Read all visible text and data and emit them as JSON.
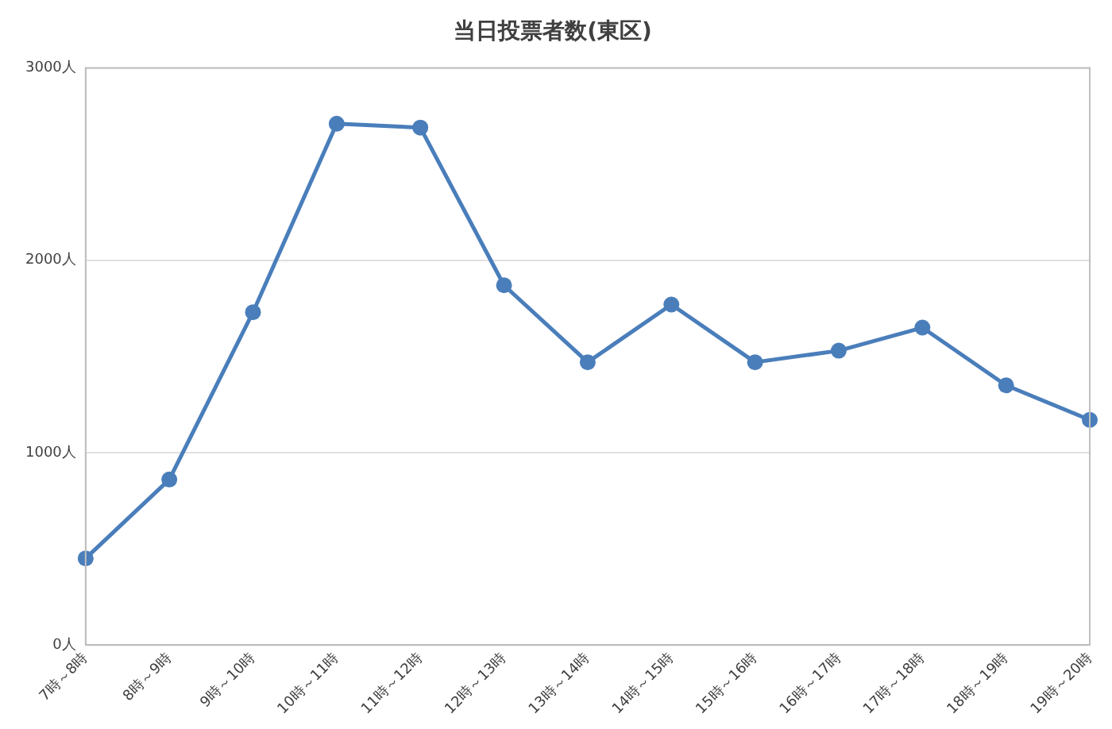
{
  "chart_data": {
    "type": "line",
    "title": "当日投票者数(東区)",
    "categories": [
      "7時～8時",
      "8時～9時",
      "9時～10時",
      "10時～11時",
      "11時～12時",
      "12時～13時",
      "13時～14時",
      "14時～15時",
      "15時～16時",
      "16時～17時",
      "17時～18時",
      "18時～19時",
      "19時～20時"
    ],
    "series": [
      {
        "color": "#4a7ebb",
        "values": [
          450,
          860,
          1730,
          2710,
          2690,
          1870,
          1470,
          1770,
          1470,
          1530,
          1650,
          1350,
          1170
        ]
      }
    ],
    "ylim": [
      0,
      3000
    ],
    "yticks": [
      {
        "value": 0,
        "label": "0人"
      },
      {
        "value": 1000,
        "label": "1000人"
      },
      {
        "value": 2000,
        "label": "2000人"
      },
      {
        "value": 3000,
        "label": "3000人"
      }
    ],
    "grid": "y",
    "legend": false,
    "marker": "circle",
    "line_style": "solid"
  }
}
